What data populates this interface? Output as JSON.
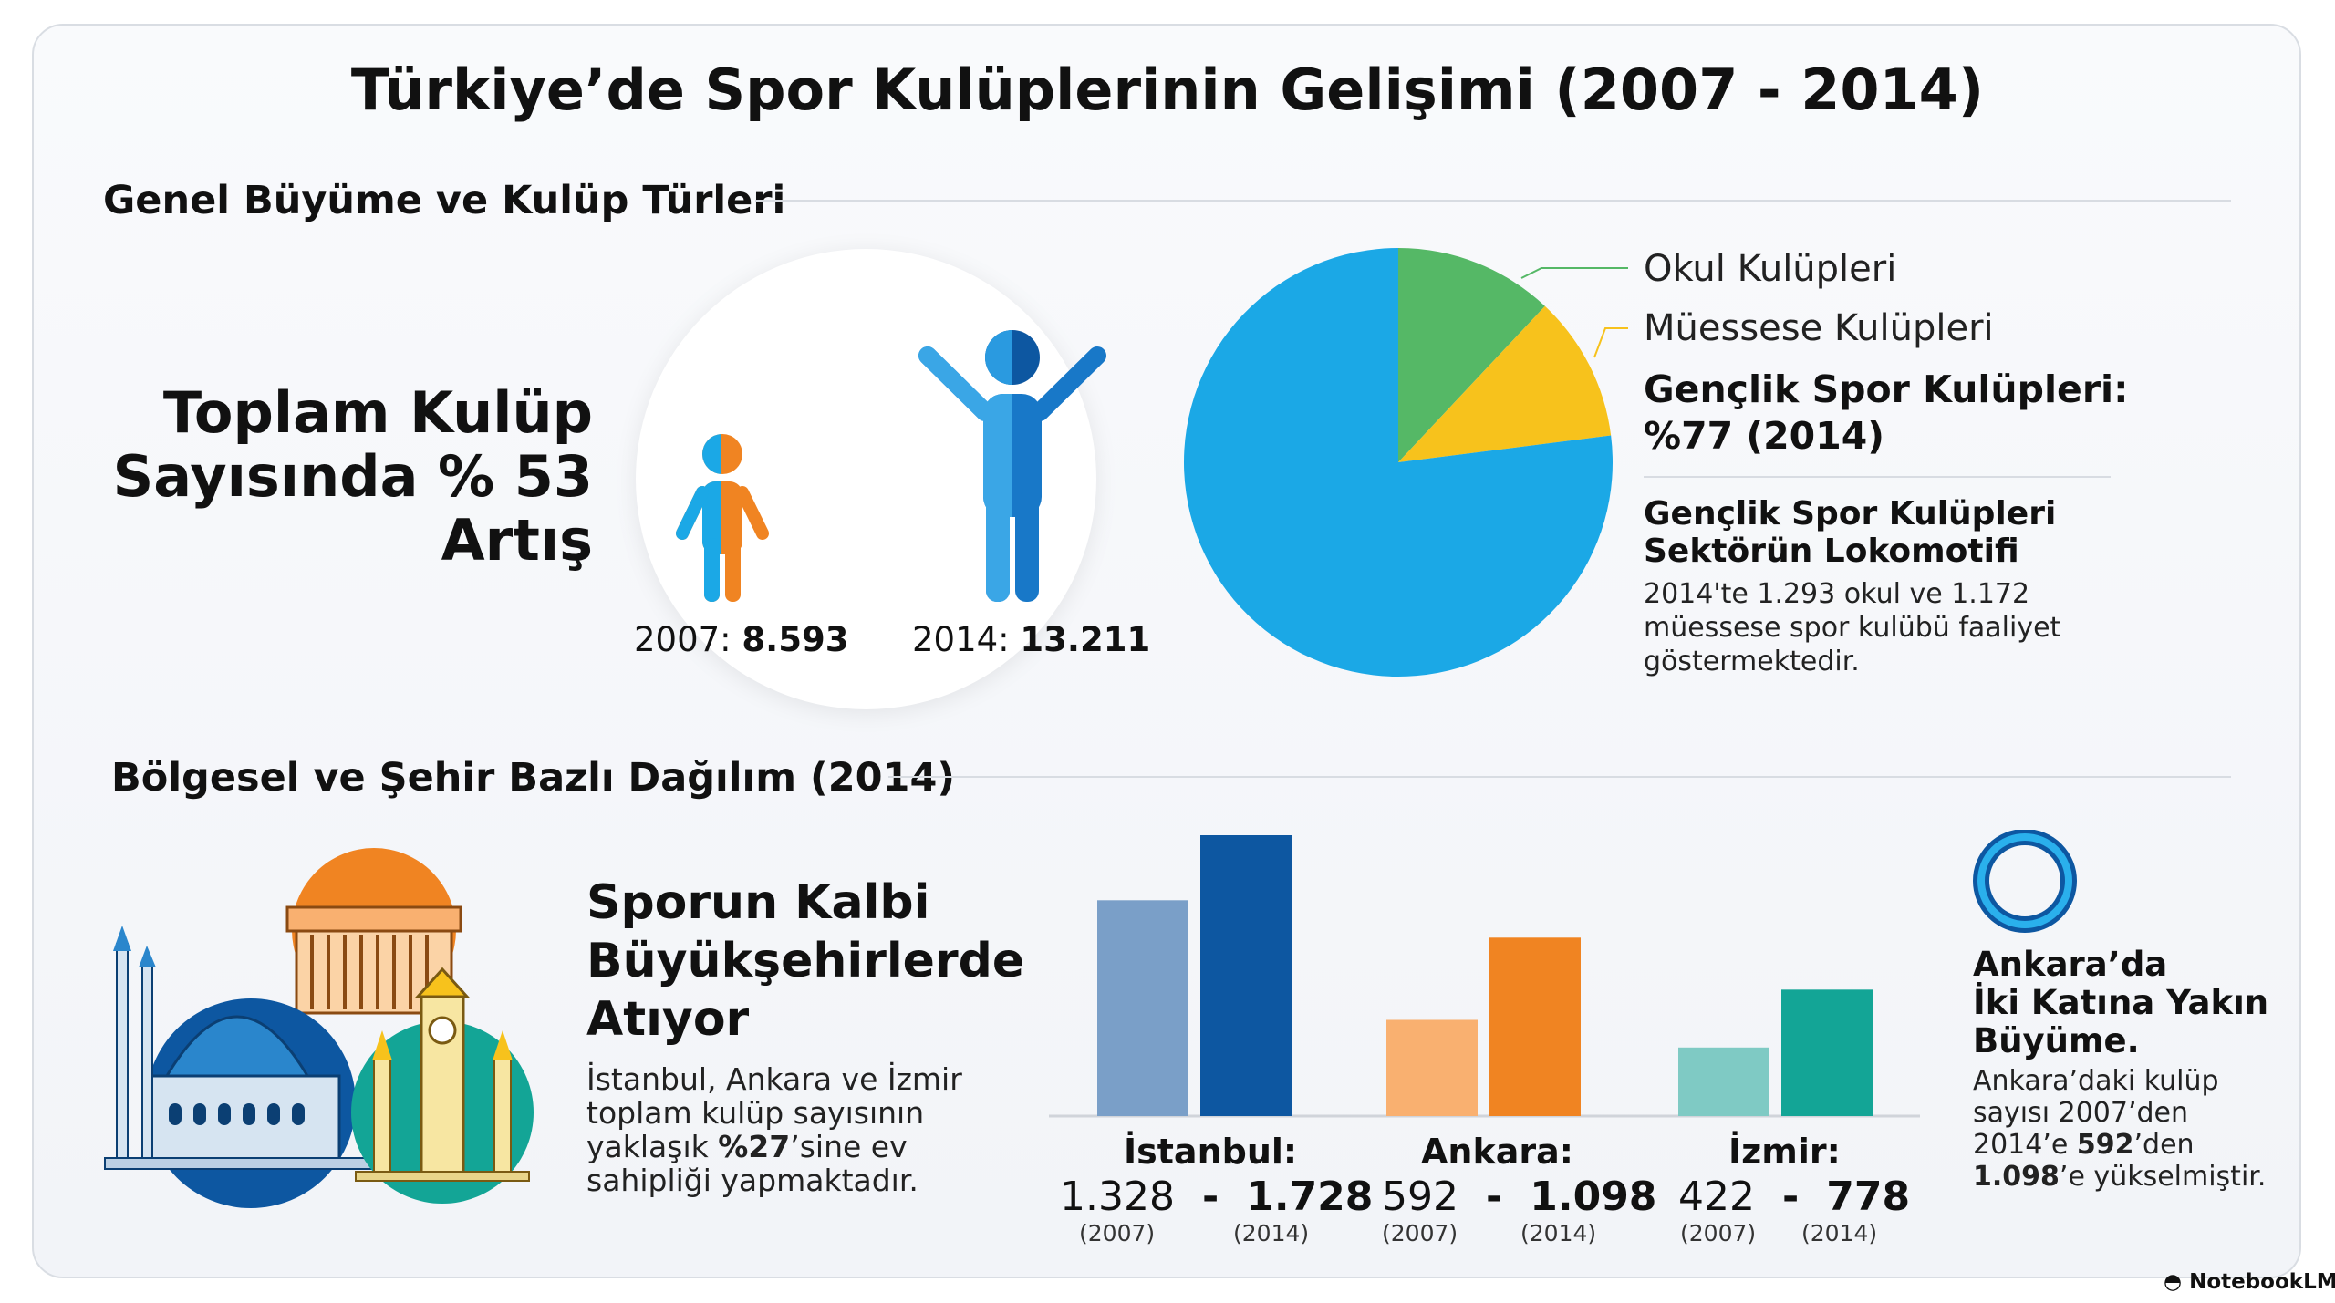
{
  "title": "Türkiye’de Spor Kulüplerinin Gelişimi (2007 - 2014)",
  "section1": {
    "title": "Genel Büyüme ve Kulüp Türleri",
    "growth_head": [
      "Toplam Kulüp",
      "Sayısında % 53",
      "Artış"
    ],
    "fig2007": {
      "year": "2007:",
      "value": "8.593"
    },
    "fig2014": {
      "year": "2014:",
      "value": "13.211"
    }
  },
  "pie": {
    "legend_okul": "Okul Kulüpleri",
    "legend_muessese": "Müessese Kulüpleri",
    "youth_pct": [
      "Gençlik Spor Kulüpleri:",
      "%77 (2014)"
    ],
    "youth_head": [
      "Gençlik Spor Kulüpleri",
      "Sektörün Lokomotifi"
    ],
    "youth_body": "2014'te 1.293 okul ve 1.172 müessese spor kulübü faaliyet göstermektedir."
  },
  "section2": {
    "title": "Bölgesel ve Şehir Bazlı Dağılım (2014)",
    "heart_head": [
      "Sporun Kalbi",
      "Büyükşehirlerde",
      "Atıyor"
    ],
    "heart_body_pre": "İstanbul, Ankara ve İzmir toplam kulüp sayısının yaklaşık ",
    "heart_body_bold": "%27",
    "heart_body_post": "’sine ev sahipliği yapmaktadır."
  },
  "bars": {
    "dash": "-",
    "cities": [
      {
        "label": "İstanbul:",
        "v2007_text": "1.328",
        "v2014_text": "1.728",
        "y2007": "(2007)",
        "y2014": "(2014)"
      },
      {
        "label": "Ankara:",
        "v2007_text": "592",
        "v2014_text": "1.098",
        "y2007": "(2007)",
        "y2014": "(2014)"
      },
      {
        "label": "İzmir:",
        "v2007_text": "422",
        "v2014_text": "778",
        "y2007": "(2007)",
        "y2014": "(2014)"
      }
    ]
  },
  "ankara": {
    "head": [
      "Ankara’da",
      "İki Katına Yakın",
      "Büyüme."
    ],
    "body_1": "Ankara’daki kulüp sayısı 2007’den 2014’e ",
    "body_b1": "592",
    "body_2": "’den ",
    "body_b2": "1.098",
    "body_3": "’e yükselmiştir."
  },
  "brand": "NotebookLM",
  "colors": {
    "pie_youth": "#1ba8e6",
    "pie_okul": "#55b866",
    "pie_muessese": "#f7c21c",
    "istanbul_2007": "#7a9fc8",
    "istanbul_2014": "#0d57a1",
    "ankara_2007": "#f9b070",
    "ankara_2014": "#f08422",
    "izmir_2007": "#7fcac4",
    "izmir_2014": "#13a596"
  },
  "chart_data": [
    {
      "type": "pie",
      "labels": [
        "Gençlik Spor Kulüpleri",
        "Okul Kulüpleri",
        "Müessese Kulüpleri"
      ],
      "values": [
        77,
        12,
        11
      ]
    },
    {
      "type": "bar",
      "categories": [
        "İstanbul",
        "Ankara",
        "İzmir"
      ],
      "series": [
        {
          "name": "2007",
          "values": [
            1328,
            592,
            422
          ]
        },
        {
          "name": "2014",
          "values": [
            1728,
            1098,
            778
          ]
        }
      ],
      "ylim": [
        0,
        1728
      ]
    },
    {
      "type": "bar",
      "categories": [
        "2007",
        "2014"
      ],
      "values": [
        8593,
        13211
      ]
    }
  ]
}
